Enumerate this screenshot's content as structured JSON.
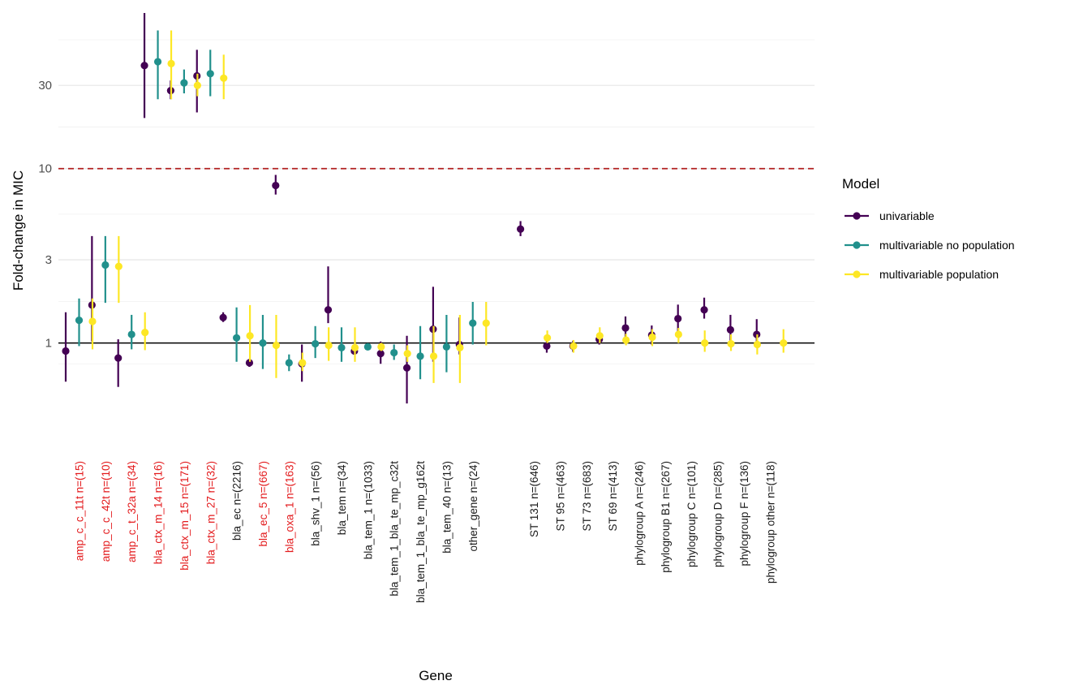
{
  "chart_data": {
    "type": "scatter",
    "subtype": "point-range",
    "xlabel": "Gene",
    "ylabel": "Fold-change in MIC",
    "y_scale": "log",
    "ylim": [
      0.25,
      85
    ],
    "yticks": [
      1,
      3,
      10,
      30
    ],
    "ytick_labels": [
      "1",
      "3",
      "10",
      "30"
    ],
    "reference_lines": [
      {
        "y": 1,
        "style": "solid",
        "color": "#000000"
      },
      {
        "y": 10,
        "style": "dashed",
        "color": "#b22222"
      }
    ],
    "categories": [
      {
        "label": "amp_c_c_11t n=(15)",
        "highlight": true,
        "group": 0
      },
      {
        "label": "amp_c_c_42t n=(10)",
        "highlight": true,
        "group": 0
      },
      {
        "label": "amp_c_t_32a n=(34)",
        "highlight": true,
        "group": 0
      },
      {
        "label": "bla_ctx_m_14 n=(16)",
        "highlight": true,
        "group": 0
      },
      {
        "label": "bla_ctx_m_15 n=(171)",
        "highlight": true,
        "group": 0
      },
      {
        "label": "bla_ctx_m_27 n=(32)",
        "highlight": true,
        "group": 0
      },
      {
        "label": "bla_ec n=(2216)",
        "highlight": false,
        "group": 0
      },
      {
        "label": "bla_ec_5 n=(667)",
        "highlight": true,
        "group": 0
      },
      {
        "label": "bla_oxa_1 n=(163)",
        "highlight": true,
        "group": 0
      },
      {
        "label": "bla_shv_1 n=(56)",
        "highlight": false,
        "group": 0
      },
      {
        "label": "bla_tem n=(34)",
        "highlight": false,
        "group": 0
      },
      {
        "label": "bla_tem_1 n=(1033)",
        "highlight": false,
        "group": 0
      },
      {
        "label": "bla_tem_1_bla_te_mp_c32t",
        "highlight": false,
        "group": 0
      },
      {
        "label": "bla_tem_1_bla_te_mp_g162t",
        "highlight": false,
        "group": 0
      },
      {
        "label": "bla_tem_40 n=(13)",
        "highlight": false,
        "group": 0
      },
      {
        "label": "other_gene n=(24)",
        "highlight": false,
        "group": 0
      },
      {
        "label": "ST 131 n=(646)",
        "highlight": false,
        "group": 1
      },
      {
        "label": "ST 95 n=(463)",
        "highlight": false,
        "group": 1
      },
      {
        "label": "ST 73 n=(683)",
        "highlight": false,
        "group": 1
      },
      {
        "label": "ST 69 n=(413)",
        "highlight": false,
        "group": 1
      },
      {
        "label": "phylogroup A n=(246)",
        "highlight": false,
        "group": 1
      },
      {
        "label": "phylogroup B1 n=(267)",
        "highlight": false,
        "group": 1
      },
      {
        "label": "phylogroup C n=(101)",
        "highlight": false,
        "group": 1
      },
      {
        "label": "phylogroup D n=(285)",
        "highlight": false,
        "group": 1
      },
      {
        "label": "phylogroup F n=(136)",
        "highlight": false,
        "group": 1
      },
      {
        "label": "phylogroup other n=(118)",
        "highlight": false,
        "group": 1
      }
    ],
    "series": [
      {
        "name": "univariable",
        "color": "#440154",
        "points": [
          {
            "est": 0.9,
            "lo": 0.6,
            "hi": 1.5
          },
          {
            "est": 1.65,
            "lo": 1.02,
            "hi": 4.1
          },
          {
            "est": 0.82,
            "lo": 0.56,
            "hi": 1.05
          },
          {
            "est": 39,
            "lo": 19.5,
            "hi": 78
          },
          {
            "est": 28,
            "lo": 25,
            "hi": 32
          },
          {
            "est": 34,
            "lo": 21,
            "hi": 48
          },
          {
            "est": 1.4,
            "lo": 1.32,
            "hi": 1.5
          },
          {
            "est": 0.77,
            "lo": 0.73,
            "hi": 0.81
          },
          {
            "est": 8,
            "lo": 7.1,
            "hi": 9.2
          },
          {
            "est": 0.76,
            "lo": 0.6,
            "hi": 0.98
          },
          {
            "est": 1.55,
            "lo": 1.3,
            "hi": 2.75
          },
          {
            "est": 0.9,
            "lo": 0.86,
            "hi": 0.95
          },
          {
            "est": 0.87,
            "lo": 0.76,
            "hi": 1.02
          },
          {
            "est": 0.72,
            "lo": 0.45,
            "hi": 1.1
          },
          {
            "est": 1.2,
            "lo": 0.78,
            "hi": 2.1
          },
          {
            "est": 0.98,
            "lo": 0.86,
            "hi": 1.4
          },
          {
            "est": 4.5,
            "lo": 4.1,
            "hi": 5.0
          },
          {
            "est": 0.96,
            "lo": 0.88,
            "hi": 1.04
          },
          {
            "est": 0.96,
            "lo": 0.89,
            "hi": 1.03
          },
          {
            "est": 1.05,
            "lo": 0.98,
            "hi": 1.15
          },
          {
            "est": 1.22,
            "lo": 1.06,
            "hi": 1.42
          },
          {
            "est": 1.11,
            "lo": 0.98,
            "hi": 1.26
          },
          {
            "est": 1.38,
            "lo": 1.15,
            "hi": 1.66
          },
          {
            "est": 1.55,
            "lo": 1.38,
            "hi": 1.82
          },
          {
            "est": 1.19,
            "lo": 0.97,
            "hi": 1.45
          },
          {
            "est": 1.12,
            "lo": 0.95,
            "hi": 1.37
          }
        ]
      },
      {
        "name": "multivariable no population",
        "color": "#21908c",
        "points": [
          {
            "est": 1.35,
            "lo": 0.96,
            "hi": 1.8
          },
          {
            "est": 2.8,
            "lo": 1.7,
            "hi": 4.1
          },
          {
            "est": 1.12,
            "lo": 0.92,
            "hi": 1.45
          },
          {
            "est": 41,
            "lo": 25,
            "hi": 62
          },
          {
            "est": 31,
            "lo": 27,
            "hi": 37
          },
          {
            "est": 35,
            "lo": 26,
            "hi": 48
          },
          {
            "est": 1.07,
            "lo": 0.78,
            "hi": 1.6
          },
          {
            "est": 1.0,
            "lo": 0.71,
            "hi": 1.45
          },
          {
            "est": 0.77,
            "lo": 0.69,
            "hi": 0.86
          },
          {
            "est": 0.99,
            "lo": 0.82,
            "hi": 1.25
          },
          {
            "est": 0.94,
            "lo": 0.78,
            "hi": 1.23
          },
          {
            "est": 0.95,
            "lo": 0.91,
            "hi": 0.99
          },
          {
            "est": 0.88,
            "lo": 0.8,
            "hi": 0.98
          },
          {
            "est": 0.84,
            "lo": 0.62,
            "hi": 1.25
          },
          {
            "est": 0.95,
            "lo": 0.68,
            "hi": 1.45
          },
          {
            "est": 1.3,
            "lo": 0.98,
            "hi": 1.72
          }
        ]
      },
      {
        "name": "multivariable population",
        "color": "#fde725",
        "points": [
          {
            "est": 1.33,
            "lo": 0.92,
            "hi": 1.8
          },
          {
            "est": 2.75,
            "lo": 1.7,
            "hi": 4.1
          },
          {
            "est": 1.15,
            "lo": 0.91,
            "hi": 1.5
          },
          {
            "est": 40,
            "lo": 25,
            "hi": 62
          },
          {
            "est": 30,
            "lo": 26,
            "hi": 35
          },
          {
            "est": 33,
            "lo": 25,
            "hi": 45
          },
          {
            "est": 1.1,
            "lo": 0.78,
            "hi": 1.65
          },
          {
            "est": 0.97,
            "lo": 0.63,
            "hi": 1.45
          },
          {
            "est": 0.77,
            "lo": 0.69,
            "hi": 0.88
          },
          {
            "est": 0.97,
            "lo": 0.79,
            "hi": 1.23
          },
          {
            "est": 0.94,
            "lo": 0.78,
            "hi": 1.23
          },
          {
            "est": 0.95,
            "lo": 0.9,
            "hi": 1.0
          },
          {
            "est": 0.87,
            "lo": 0.78,
            "hi": 0.97
          },
          {
            "est": 0.84,
            "lo": 0.59,
            "hi": 1.25
          },
          {
            "est": 0.94,
            "lo": 0.59,
            "hi": 1.45
          },
          {
            "est": 1.3,
            "lo": 0.97,
            "hi": 1.72
          },
          null,
          {
            "est": 0.96,
            "lo": 0.88,
            "hi": 1.04
          },
          null,
          null,
          {
            "est": 1.08,
            "lo": 0.96,
            "hi": 1.2
          },
          {
            "est": 1.12,
            "lo": 1.0,
            "hi": 1.22
          },
          {
            "est": 1.0,
            "lo": 0.89,
            "hi": 1.18
          },
          {
            "est": 0.99,
            "lo": 0.9,
            "hi": 1.12
          },
          {
            "est": 0.98,
            "lo": 0.86,
            "hi": 1.12
          },
          {
            "est": 1.0,
            "lo": 0.88,
            "hi": 1.2
          }
        ]
      }
    ],
    "extra_series_points": [
      {
        "series": 2,
        "index": 16,
        "est": 1.07,
        "lo": 1.0,
        "hi": 1.18
      },
      {
        "series": 2,
        "index": 18,
        "est": 1.1,
        "lo": 1.0,
        "hi": 1.23
      },
      {
        "series": 2,
        "index": 19,
        "est": 1.04,
        "lo": 0.97,
        "hi": 1.13
      }
    ],
    "legend": {
      "title": "Model",
      "position": "right",
      "items": [
        "univariable",
        "multivariable no population",
        "multivariable population"
      ]
    },
    "highlight_color": "#e31a1c"
  }
}
